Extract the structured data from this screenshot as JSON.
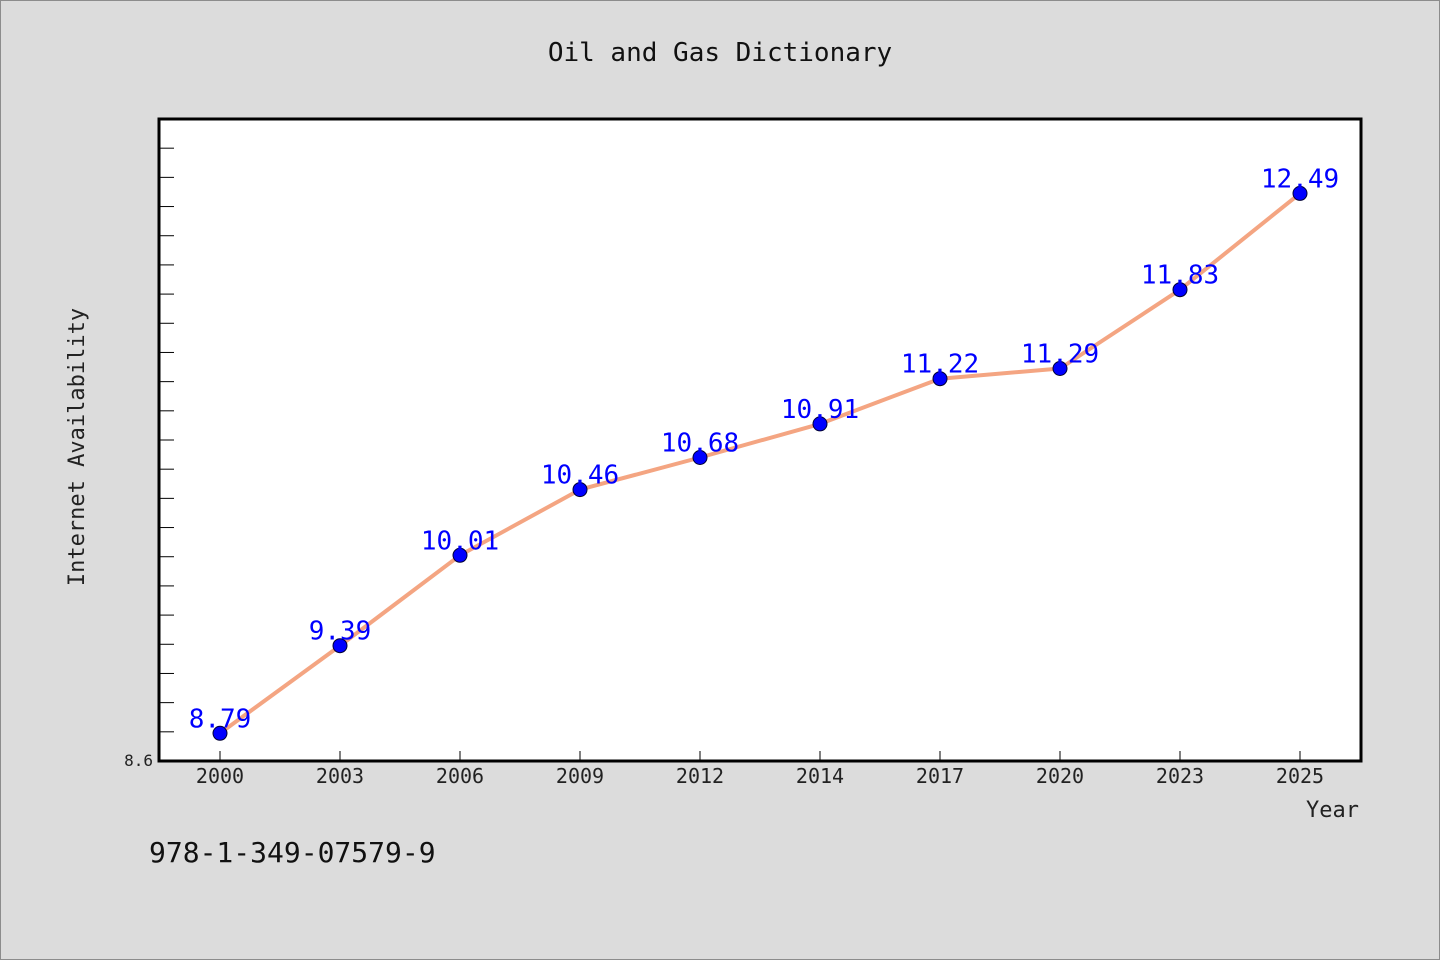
{
  "chart_data": {
    "type": "line",
    "title": "Oil and Gas Dictionary",
    "xlabel": "Year",
    "ylabel": "Internet Availability",
    "categories": [
      "2000",
      "2003",
      "2006",
      "2009",
      "2012",
      "2014",
      "2017",
      "2020",
      "2023",
      "2025"
    ],
    "series": [
      {
        "values": [
          8.79,
          9.39,
          10.01,
          10.46,
          10.68,
          10.91,
          11.22,
          11.29,
          11.83,
          12.49
        ]
      }
    ],
    "data_labels": [
      "8.79",
      "9.39",
      "10.01",
      "10.46",
      "10.68",
      "10.91",
      "11.22",
      "11.29",
      "11.83",
      "12.49"
    ],
    "y_tick_labels": [
      "8.6"
    ],
    "ylim": [
      8.6,
      13.0
    ],
    "grid": false,
    "line_color": "#f4a582",
    "marker_color": "#0000ff",
    "label_color": "#0000ff"
  },
  "footer": {
    "isbn": "978-1-349-07579-9"
  }
}
